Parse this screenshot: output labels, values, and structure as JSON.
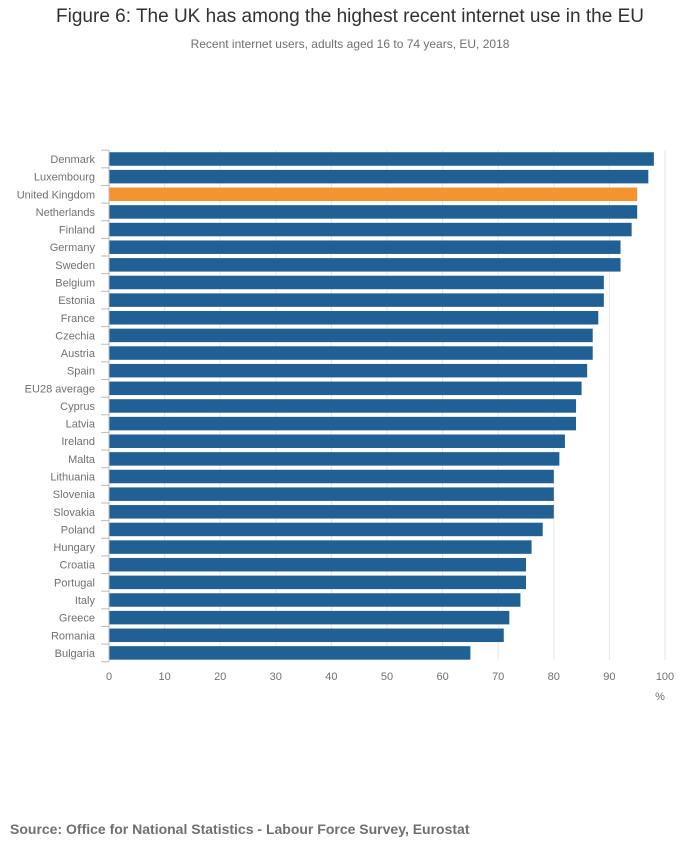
{
  "header": {
    "title": "Figure 6: The UK has among the highest recent internet use in the EU",
    "subtitle": "Recent internet users, adults aged 16 to 74 years, EU, 2018"
  },
  "footer": {
    "source": "Source: Office for National Statistics - Labour Force Survey, Eurostat"
  },
  "colors": {
    "bar": "#206095",
    "highlight": "#f39431",
    "grid": "#e6e6e6",
    "axis": "#bcbcbc",
    "label": "#707071"
  },
  "chart_data": {
    "type": "bar",
    "orientation": "horizontal",
    "title": "Figure 6: The UK has among the highest recent internet use in the EU",
    "subtitle": "Recent internet users, adults aged 16 to 74 years, EU, 2018",
    "xlabel": "%",
    "ylabel": "",
    "xlim": [
      0,
      100
    ],
    "ticks": [
      0,
      10,
      20,
      30,
      40,
      50,
      60,
      70,
      80,
      90,
      100
    ],
    "grid": true,
    "highlight": "United Kingdom",
    "categories": [
      "Denmark",
      "Luxembourg",
      "United Kingdom",
      "Netherlands",
      "Finland",
      "Germany",
      "Sweden",
      "Belgium",
      "Estonia",
      "France",
      "Czechia",
      "Austria",
      "Spain",
      "EU28 average",
      "Cyprus",
      "Latvia",
      "Ireland",
      "Malta",
      "Lithuania",
      "Slovenia",
      "Slovakia",
      "Poland",
      "Hungary",
      "Croatia",
      "Portugal",
      "Italy",
      "Greece",
      "Romania",
      "Bulgaria"
    ],
    "values": [
      98,
      97,
      95,
      95,
      94,
      92,
      92,
      89,
      89,
      88,
      87,
      87,
      86,
      85,
      84,
      84,
      82,
      81,
      80,
      80,
      80,
      78,
      76,
      75,
      75,
      74,
      72,
      71,
      65
    ]
  }
}
